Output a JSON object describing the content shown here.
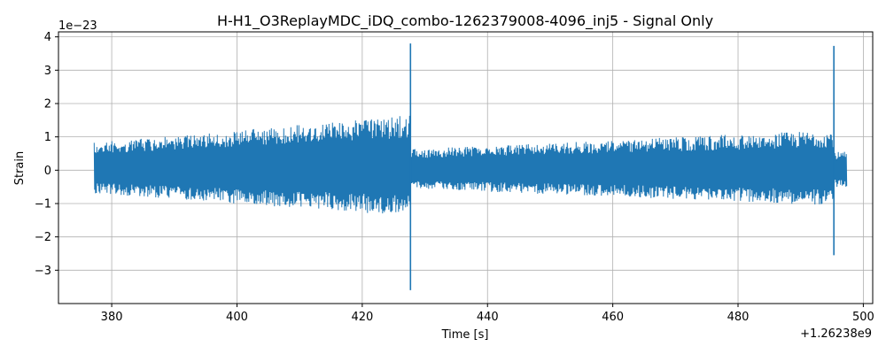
{
  "chart_data": {
    "type": "line",
    "title": "H-H1_O3ReplayMDC_iDQ_combo-1262379008-4096_inj5 - Signal Only",
    "xlabel": "Time [s]",
    "ylabel": "Strain",
    "x_offset_label": "+1.26238e9",
    "y_scale_label": "1e−23",
    "xlim": [
      371.5,
      501.5
    ],
    "ylim": [
      -4.0,
      4.15
    ],
    "x_ticks": [
      380,
      400,
      420,
      440,
      460,
      480,
      500
    ],
    "x_tick_labels": [
      "380",
      "400",
      "420",
      "440",
      "460",
      "480",
      "500"
    ],
    "y_ticks": [
      -3,
      -2,
      -1,
      0,
      1,
      2,
      3,
      4
    ],
    "y_tick_labels": [
      "−3",
      "−2",
      "−1",
      "0",
      "1",
      "2",
      "3",
      "4"
    ],
    "grid": true,
    "color": "#1f77b4",
    "series": [
      {
        "segments": [
          {
            "t_start": 377.2,
            "t_end": 427.7,
            "amp_start": 0.75,
            "amp_end": 1.5,
            "pos_bias": 0.1
          },
          {
            "t_start": 427.7,
            "t_end": 495.3,
            "amp_start": 0.6,
            "amp_end": 1.15,
            "pos_bias": 0.05
          },
          {
            "t_start": 495.3,
            "t_end": 497.4,
            "amp_start": 0.55,
            "amp_end": 0.55,
            "pos_bias": 0.0
          }
        ],
        "spikes": [
          {
            "t": 427.7,
            "max": 3.8,
            "min": -3.6
          },
          {
            "t": 495.3,
            "max": 3.73,
            "min": -2.55
          }
        ]
      }
    ]
  }
}
